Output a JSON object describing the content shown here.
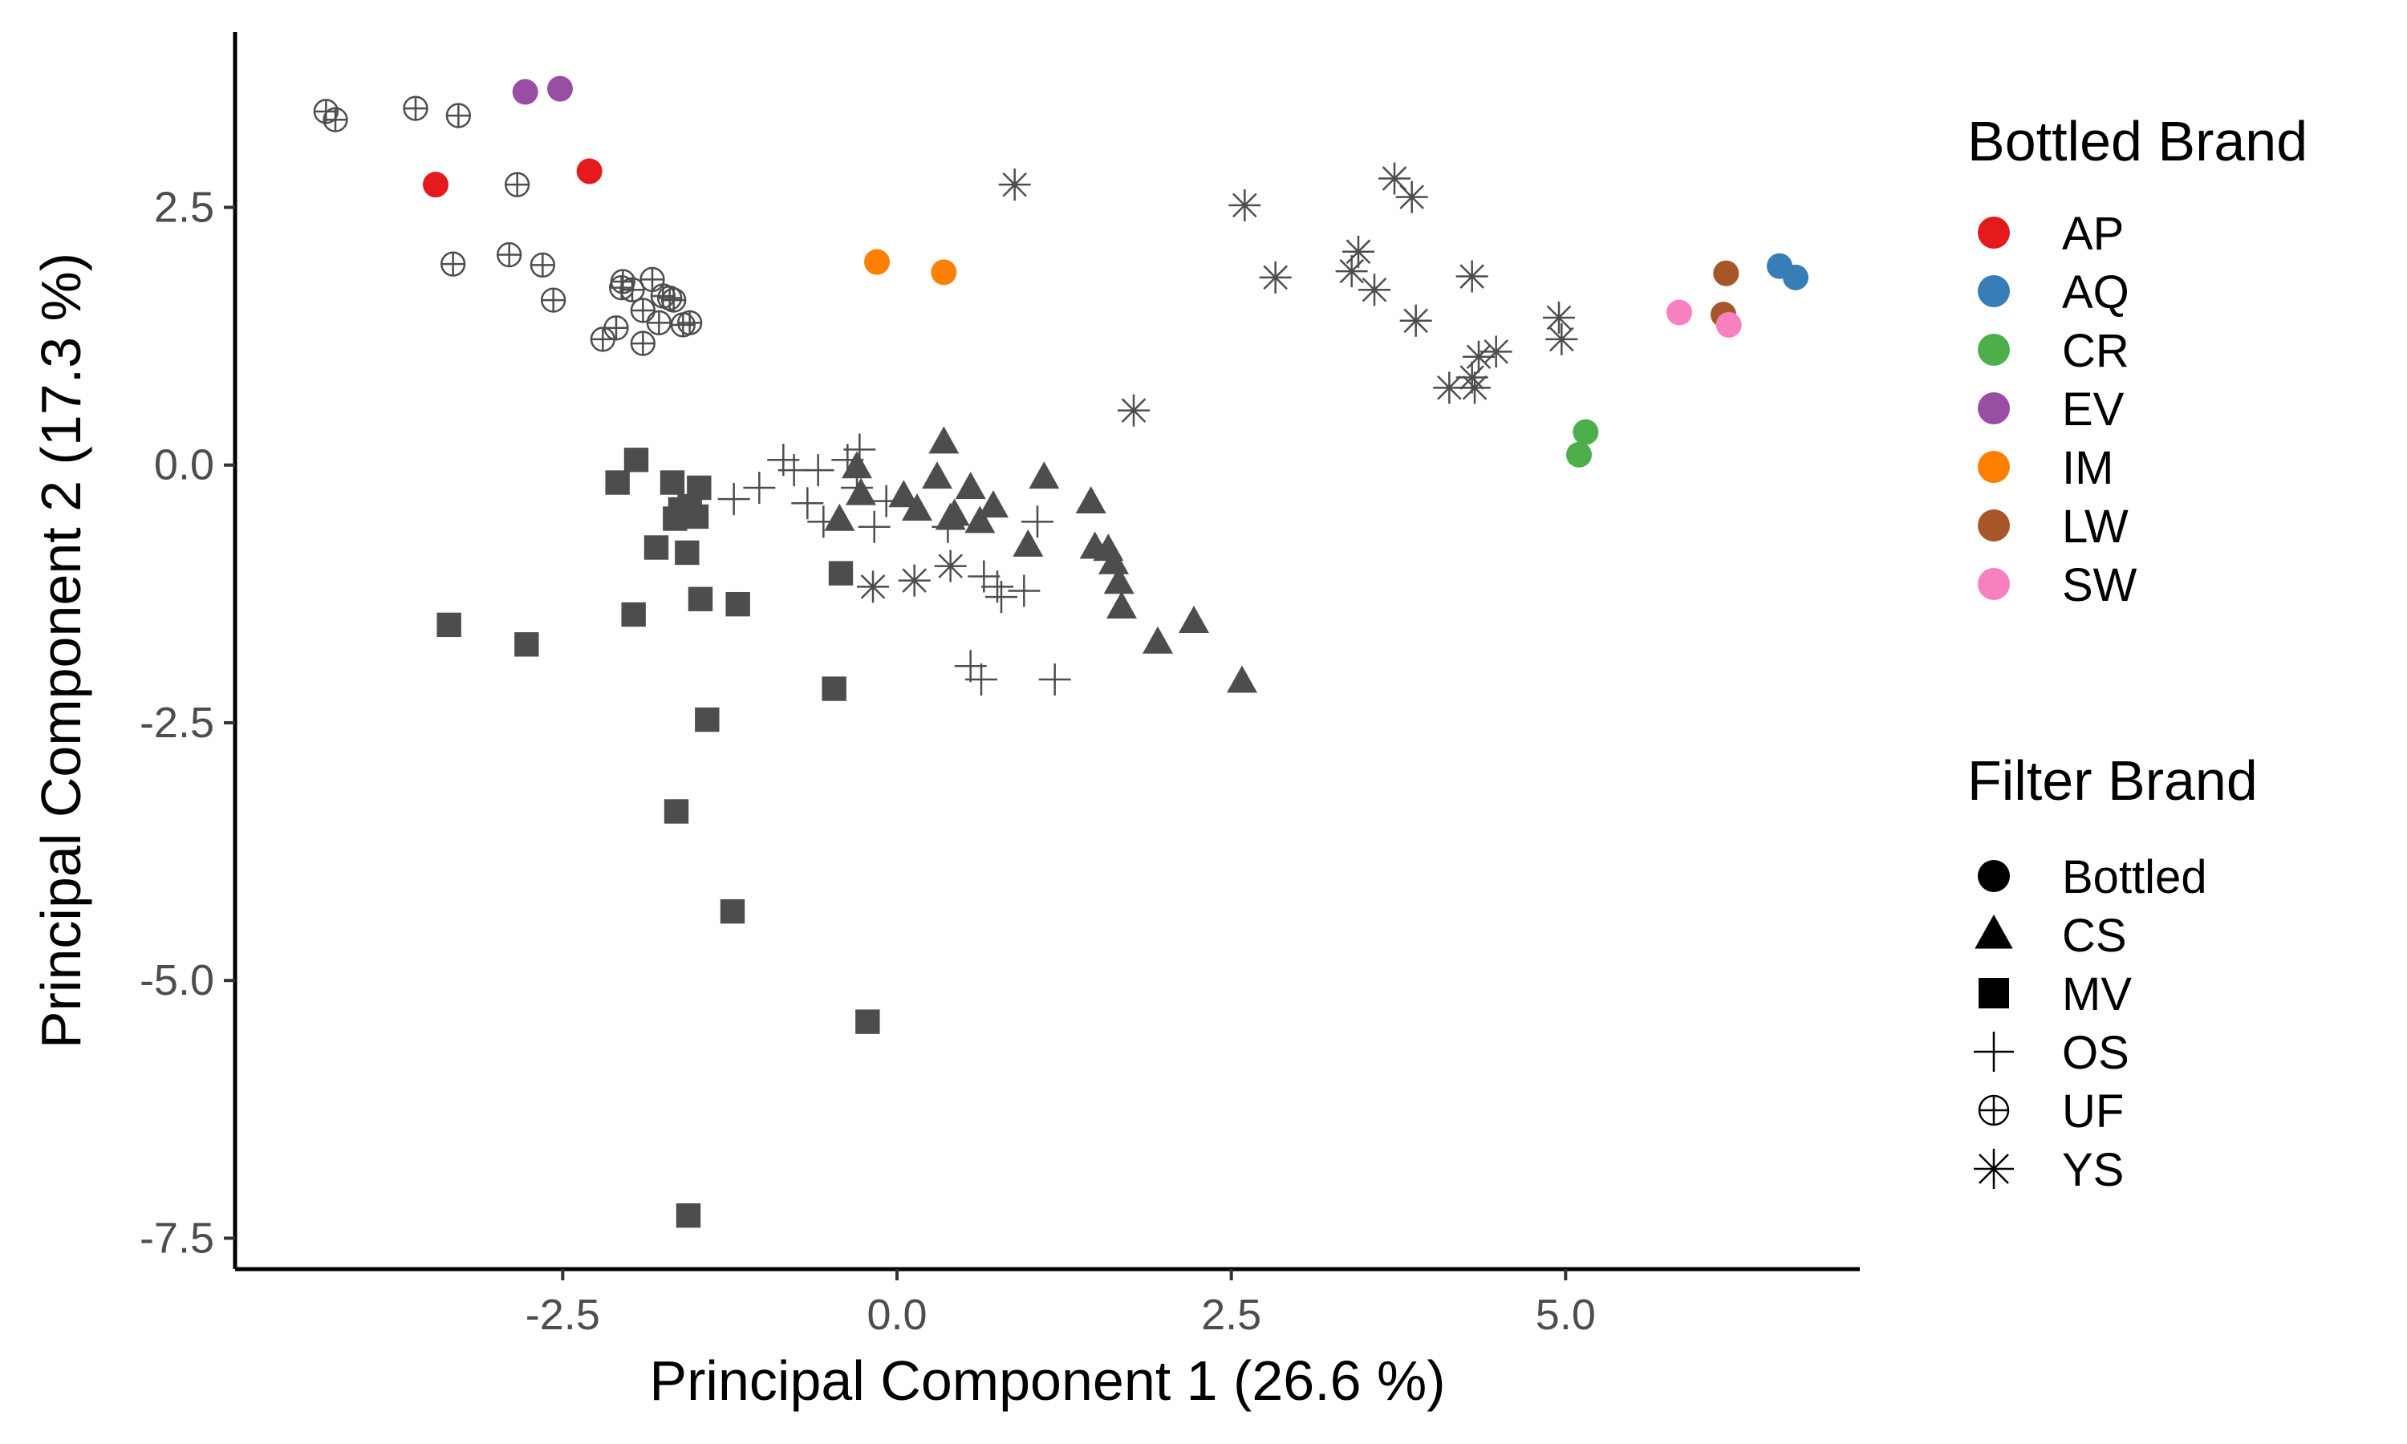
{
  "chart_data": {
    "type": "scatter",
    "xlabel": "Principal Component 1 (26.6 %)",
    "ylabel": "Principal Component 2 (17.3 %)",
    "xlim": [
      -4.95,
      7.2
    ],
    "ylim": [
      -7.8,
      4.2
    ],
    "x_ticks": [
      -2.5,
      0.0,
      2.5,
      5.0
    ],
    "x_tick_labels": [
      "-2.5",
      "0.0",
      "2.5",
      "5.0"
    ],
    "y_ticks": [
      2.5,
      0.0,
      -2.5,
      -5.0,
      -7.5
    ],
    "y_tick_labels": [
      "2.5",
      "0.0",
      "-2.5",
      "-5.0",
      "-7.5"
    ],
    "grid": false,
    "legend_placement": "right",
    "legends": {
      "color": {
        "title": "Bottled Brand",
        "items": [
          {
            "label": "AP",
            "color": "#e41a1c"
          },
          {
            "label": "AQ",
            "color": "#377eb8"
          },
          {
            "label": "CR",
            "color": "#4daf4a"
          },
          {
            "label": "EV",
            "color": "#984ea3"
          },
          {
            "label": "IM",
            "color": "#ff7f00"
          },
          {
            "label": "LW",
            "color": "#a65628"
          },
          {
            "label": "SW",
            "color": "#f781bf"
          }
        ]
      },
      "shape": {
        "title": "Filter Brand",
        "items": [
          {
            "label": "Bottled",
            "shape": "circle"
          },
          {
            "label": "CS",
            "shape": "triangle"
          },
          {
            "label": "MV",
            "shape": "square"
          },
          {
            "label": "OS",
            "shape": "plus"
          },
          {
            "label": "UF",
            "shape": "circle-plus"
          },
          {
            "label": "YS",
            "shape": "asterisk"
          }
        ]
      }
    },
    "series": [
      {
        "name": "AP",
        "shape": "circle",
        "color": "#e41a1c",
        "x": [
          -3.45,
          -2.3
        ],
        "y": [
          2.72,
          2.85
        ]
      },
      {
        "name": "AQ",
        "shape": "circle",
        "color": "#377eb8",
        "x": [
          6.6,
          6.72
        ],
        "y": [
          1.93,
          1.82
        ]
      },
      {
        "name": "CR",
        "shape": "circle",
        "color": "#4daf4a",
        "x": [
          5.15,
          5.1
        ],
        "y": [
          0.32,
          0.1
        ]
      },
      {
        "name": "EV",
        "shape": "circle",
        "color": "#984ea3",
        "x": [
          -2.78,
          -2.52
        ],
        "y": [
          3.62,
          3.65
        ]
      },
      {
        "name": "IM",
        "shape": "circle",
        "color": "#ff7f00",
        "x": [
          -0.15,
          0.35
        ],
        "y": [
          1.97,
          1.87
        ]
      },
      {
        "name": "LW",
        "shape": "circle",
        "color": "#a65628",
        "x": [
          6.2,
          6.18
        ],
        "y": [
          1.86,
          1.46
        ]
      },
      {
        "name": "SW",
        "shape": "circle",
        "color": "#f781bf",
        "x": [
          5.85,
          6.22
        ],
        "y": [
          1.48,
          1.36
        ]
      },
      {
        "name": "CS",
        "shape": "triangle",
        "color": "#4d4d4d",
        "x": [
          0.35,
          -0.3,
          -0.43,
          -0.27,
          0.05,
          0.15,
          0.3,
          0.43,
          0.55,
          0.62,
          0.72,
          0.4,
          1.1,
          0.98,
          1.45,
          1.48,
          1.58,
          1.62,
          1.66,
          1.68,
          1.95,
          2.22,
          2.58
        ],
        "y": [
          0.22,
          -0.02,
          -0.53,
          -0.28,
          -0.3,
          -0.43,
          -0.12,
          -0.48,
          -0.22,
          -0.55,
          -0.4,
          -0.52,
          -0.12,
          -0.78,
          -0.36,
          -0.8,
          -0.82,
          -0.95,
          -1.14,
          -1.38,
          -1.72,
          -1.52,
          -2.1
        ]
      },
      {
        "name": "MV",
        "shape": "square",
        "color": "#4d4d4d",
        "x": [
          -1.95,
          -2.09,
          -1.68,
          -1.62,
          -1.55,
          -1.66,
          -1.48,
          -1.5,
          -1.8,
          -1.57,
          -1.47,
          -1.19,
          -0.42,
          -0.47,
          -1.97,
          -3.35,
          -2.77,
          -1.42,
          -1.65,
          -1.23,
          -0.22,
          -1.56
        ],
        "y": [
          0.05,
          -0.17,
          -0.17,
          -0.43,
          -0.4,
          -0.52,
          -0.22,
          -0.5,
          -0.8,
          -0.85,
          -1.3,
          -1.35,
          -1.05,
          -2.17,
          -1.45,
          -1.55,
          -1.74,
          -2.47,
          -3.36,
          -4.33,
          -5.4,
          -7.28
        ]
      },
      {
        "name": "OS",
        "shape": "plus",
        "color": "#4d4d4d",
        "x": [
          -1.22,
          -1.03,
          -0.85,
          -0.77,
          -0.67,
          -0.59,
          -0.55,
          -0.3,
          -0.37,
          -0.28,
          -0.17,
          -0.08,
          0.38,
          0.65,
          0.75,
          0.78,
          0.95,
          0.55,
          0.63,
          1.05,
          1.18
        ],
        "y": [
          -0.33,
          -0.22,
          0.05,
          -0.05,
          -0.37,
          -0.05,
          -0.55,
          -0.22,
          0.05,
          0.15,
          -0.6,
          -0.35,
          -0.6,
          -1.08,
          -1.18,
          -1.28,
          -1.22,
          -1.95,
          -2.08,
          -0.55,
          -2.08
        ]
      },
      {
        "name": "UF",
        "shape": "circle-plus",
        "color": "#4d4d4d",
        "x": [
          -4.27,
          -4.2,
          -3.6,
          -3.28,
          -2.84,
          -3.32,
          -2.9,
          -2.65,
          -2.57,
          -2.06,
          -2.05,
          -1.98,
          -1.83,
          -1.75,
          -1.7,
          -1.67,
          -1.9,
          -1.78,
          -1.6,
          -1.55,
          -2.1,
          -2.2,
          -1.9
        ],
        "y": [
          3.43,
          3.35,
          3.46,
          3.39,
          2.72,
          1.95,
          2.04,
          1.94,
          1.6,
          1.72,
          1.78,
          1.7,
          1.8,
          1.64,
          1.62,
          1.6,
          1.5,
          1.38,
          1.36,
          1.38,
          1.33,
          1.22,
          1.18
        ]
      },
      {
        "name": "YS",
        "shape": "asterisk",
        "color": "#4d4d4d",
        "x": [
          0.88,
          2.6,
          2.83,
          3.72,
          3.85,
          3.45,
          3.4,
          3.57,
          3.88,
          4.3,
          4.95,
          4.97,
          4.48,
          4.35,
          4.3,
          4.13,
          4.32,
          1.77,
          -0.18,
          0.13,
          0.4
        ],
        "y": [
          2.72,
          2.52,
          1.82,
          2.78,
          2.6,
          2.07,
          1.88,
          1.7,
          1.4,
          1.83,
          1.43,
          1.22,
          1.1,
          1.05,
          0.85,
          0.75,
          0.75,
          0.53,
          -1.18,
          -1.12,
          -0.98
        ]
      }
    ]
  }
}
